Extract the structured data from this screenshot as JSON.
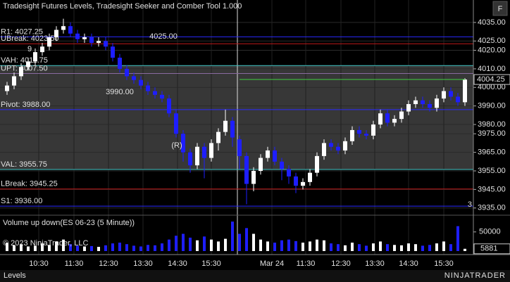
{
  "chart_data": {
    "type": "candlestick",
    "title": "Tradesight Futures Levels, Tradesight Seeker and Comber Tool 1.000",
    "up_color": "#ffffff",
    "down_color": "#1e1eff",
    "open": [
      3998,
      4001,
      4006,
      4011,
      4014,
      4019,
      4022,
      4027,
      4031,
      4033,
      4029,
      4026,
      4027,
      4024,
      4025,
      4022,
      4016,
      4010,
      4006,
      4004,
      4001,
      3998,
      3996,
      3994,
      3986,
      3975,
      3965,
      3958,
      3968,
      3962,
      3970,
      3976,
      3982,
      3972,
      3963,
      3948,
      3955,
      3962,
      3966,
      3960,
      3956,
      3952,
      3947,
      3949,
      3954,
      3963,
      3970,
      3968,
      3966,
      3971,
      3977,
      3975,
      3974,
      3980,
      3986,
      3981,
      3983,
      3987,
      3991,
      3993,
      3991,
      3989,
      3994,
      3998,
      3995,
      3992
    ],
    "high": [
      4003,
      4008,
      4013,
      4016,
      4021,
      4024,
      4029,
      4033,
      4037,
      4035,
      4031,
      4029,
      4029,
      4027,
      4027,
      4024,
      4018,
      4012,
      4008,
      4006,
      4003,
      4000,
      3998,
      3996,
      3988,
      3977,
      3967,
      3970,
      3970,
      3972,
      3978,
      3988,
      3984,
      3974,
      3965,
      3957,
      3964,
      3968,
      3968,
      3962,
      3958,
      3954,
      3951,
      3956,
      3965,
      3972,
      3972,
      3970,
      3973,
      3979,
      3979,
      3977,
      3982,
      3988,
      3988,
      3985,
      3989,
      3993,
      3995,
      3995,
      3993,
      3996,
      4000,
      4000,
      3997,
      4005
    ],
    "low": [
      3996,
      3999,
      4004,
      4009,
      4012,
      4017,
      4020,
      4025,
      4029,
      4027,
      4024,
      4024,
      4022,
      4022,
      4020,
      4014,
      4008,
      4004,
      4002,
      3999,
      3996,
      3994,
      3992,
      3984,
      3973,
      3960,
      3954,
      3956,
      3951,
      3960,
      3966,
      3974,
      3968,
      3956,
      3937,
      3944,
      3953,
      3960,
      3958,
      3950,
      3948,
      3943,
      3945,
      3947,
      3952,
      3961,
      3966,
      3964,
      3964,
      3969,
      3973,
      3972,
      3972,
      3978,
      3979,
      3979,
      3981,
      3985,
      3989,
      3989,
      3987,
      3987,
      3992,
      3993,
      3990,
      3990
    ],
    "close": [
      4001,
      4006,
      4011,
      4014,
      4019,
      4022,
      4027,
      4031,
      4033,
      4029,
      4026,
      4027,
      4024,
      4025,
      4022,
      4016,
      4010,
      4006,
      4004,
      4001,
      3998,
      3996,
      3994,
      3986,
      3975,
      3965,
      3958,
      3968,
      3962,
      3970,
      3976,
      3982,
      3973,
      3963,
      3948,
      3955,
      3962,
      3966,
      3960,
      3956,
      3952,
      3947,
      3949,
      3954,
      3963,
      3970,
      3968,
      3966,
      3971,
      3977,
      3975,
      3974,
      3980,
      3986,
      3981,
      3983,
      3987,
      3991,
      3993,
      3991,
      3989,
      3994,
      3998,
      3995,
      3992,
      4004.25
    ],
    "ylim": [
      3931.5,
      4047.1
    ],
    "yticks": [
      {
        "value": 4035,
        "label": "4035.00"
      },
      {
        "value": 4025,
        "label": "4025.00"
      },
      {
        "value": 4020,
        "label": "4020.00"
      },
      {
        "value": 4010,
        "label": "4010.00"
      },
      {
        "value": 4000,
        "label": "4000.00"
      },
      {
        "value": 3990,
        "label": "3990.00"
      },
      {
        "value": 3980,
        "label": "3980.00"
      },
      {
        "value": 3975,
        "label": "3975.00"
      },
      {
        "value": 3965,
        "label": "3965.00"
      },
      {
        "value": 3955,
        "label": "3955.00"
      },
      {
        "value": 3945,
        "label": "3945.00"
      },
      {
        "value": 3935,
        "label": "3935.00"
      }
    ],
    "grid": true,
    "x_labels": [
      "10:30",
      "11:30",
      "12:30",
      "13:30",
      "14:30",
      "15:30",
      "Mar 24",
      "11:30",
      "12:30",
      "13:30",
      "14:30",
      "15:30"
    ],
    "levels": [
      {
        "label": "R1: 4027.25",
        "value": 4027.25,
        "color": "#2a2aff"
      },
      {
        "label": "UBreak: 4023.50",
        "value": 4023.5,
        "color": "#c01818"
      },
      {
        "label": "VAH: 4011.75",
        "value": 4011.75,
        "color": "#40c8c8"
      },
      {
        "label": "UPT: 4007.50",
        "value": 4007.5,
        "color": "#8a6aa0"
      },
      {
        "label": "Pivot: 3988.00",
        "value": 3988,
        "color": "#2a2aff"
      },
      {
        "label": "VAL: 3955.75",
        "value": 3955.75,
        "color": "#40c8c8"
      },
      {
        "label": "LBreak: 3945.25",
        "value": 3945.25,
        "color": "#c01818"
      },
      {
        "label": "S1: 3936.00",
        "value": 3936,
        "color": "#2a2aff"
      }
    ],
    "value_area_color": "#4a4a4a",
    "last_line_color": "#40d040",
    "annotations": [
      {
        "text": "4025.00",
        "color": "#40c040"
      },
      {
        "text": "3990.00",
        "color": "#e02020"
      },
      {
        "text": "(R)",
        "color": "#40d0d0"
      },
      {
        "text": "3",
        "color": "#e02020"
      },
      {
        "text": "9",
        "color": "#40c040"
      }
    ],
    "volume": {
      "title": "Volume up down(ES 06-23 (5 Minute))",
      "values": [
        22000,
        15000,
        18000,
        12000,
        14000,
        20000,
        16000,
        25000,
        30000,
        18000,
        14000,
        12000,
        13000,
        11000,
        15000,
        20000,
        22000,
        18000,
        14000,
        12000,
        16000,
        15000,
        20000,
        30000,
        40000,
        45000,
        35000,
        28000,
        38000,
        30000,
        25000,
        32000,
        77000,
        45000,
        60000,
        45000,
        30000,
        25000,
        22000,
        28000,
        30000,
        26000,
        22000,
        25000,
        30000,
        28000,
        20000,
        18000,
        15000,
        22000,
        18000,
        14000,
        20000,
        25000,
        18000,
        16000,
        15000,
        20000,
        18000,
        14000,
        16000,
        20000,
        25000,
        18000,
        65000,
        5881
      ],
      "ylim": [
        0,
        90000
      ],
      "yticks": [
        50000
      ]
    },
    "copyright": "© 2023 NinjaTrader, LLC",
    "tab": "Levels",
    "logo": "NINJATRADER",
    "button": "F"
  }
}
